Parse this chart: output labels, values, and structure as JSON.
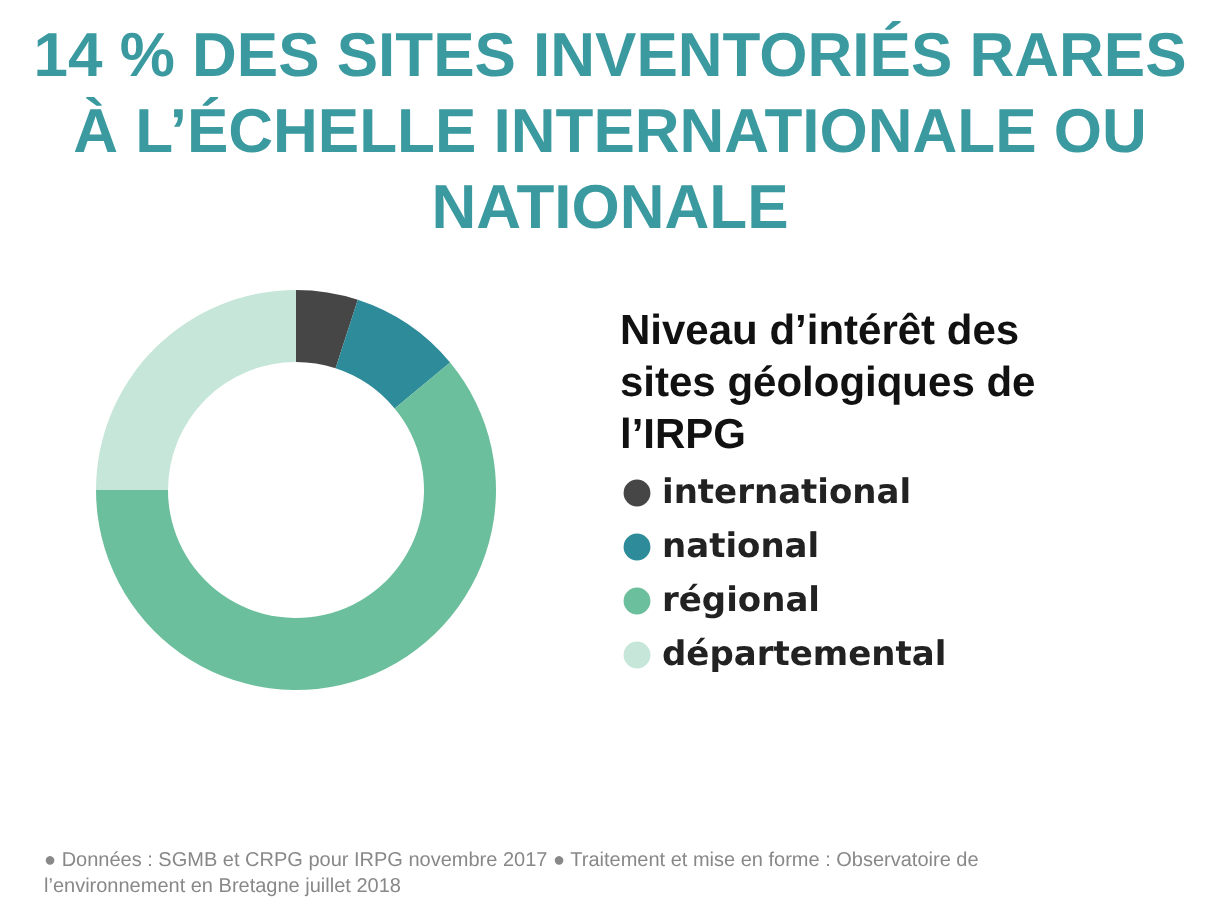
{
  "chart_data": {
    "type": "donut",
    "title": "14 % DES SITES INVENTORIÉS RARES À L’ÉCHELLE INTERNATIONALE OU NATIONALE",
    "legend_title": "Niveau d’intérêt des sites géologiques de l’IRPG",
    "categories": [
      "international",
      "national",
      "régional",
      "départemental"
    ],
    "values": [
      5,
      9,
      61,
      25
    ],
    "colors": [
      "#464646",
      "#2e8b9a",
      "#6cbf9c",
      "#c5e6d8"
    ],
    "legend": "right",
    "annotations": [
      "● Données : SGMB et CRPG pour IRPG novembre 2017 ● Traitement et mise en forme : Observatoire de l’environnement en Bretagne juillet 2018"
    ]
  }
}
